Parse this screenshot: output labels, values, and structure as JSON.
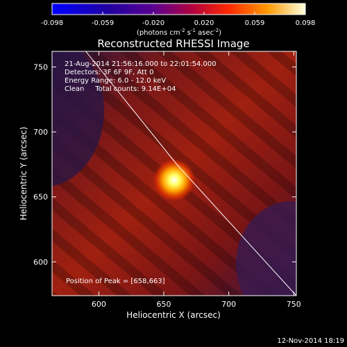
{
  "chart_data": {
    "type": "heatmap",
    "title": "Reconstructed RHESSI Image",
    "xlabel": "Heliocentric X (arcsec)",
    "ylabel": "Heliocentric Y (arcsec)",
    "xlim": [
      564,
      752
    ],
    "ylim": [
      574,
      762
    ],
    "xticks": [
      600,
      650,
      700,
      750
    ],
    "yticks": [
      600,
      650,
      700,
      750
    ],
    "colorbar": {
      "ticks": [
        "-0.098",
        "-0.059",
        "-0.020",
        "0.020",
        "0.059",
        "0.098"
      ],
      "unit": "(photons cm",
      "unit_exp1": "-2",
      "unit_mid": " s",
      "unit_exp2": "-1",
      "unit_mid2": " asec",
      "unit_exp3": "-2",
      "unit_end": ")",
      "range": [
        -0.098,
        0.098
      ]
    },
    "annotations": {
      "line1": "21-Aug-2014 21:56:16.000 to 22:01:54.000",
      "line2": "Detectors: 3F 6F 9F, Att 0",
      "line3": "Energy Range: 6.0 - 12.0 keV",
      "line4": "Clean     Total counts: 9.14E+04",
      "peak": "Position of Peak = [658,663]"
    },
    "peak": [
      658,
      663
    ],
    "limb": [
      [
        590,
        762
      ],
      [
        660,
        675
      ],
      [
        752,
        574
      ]
    ],
    "colors": {
      "low": "#1a0f3a",
      "mid": "#8a1810",
      "peak": "#ffffff"
    }
  },
  "footer": {
    "date": "12-Nov-2014 18:19"
  }
}
